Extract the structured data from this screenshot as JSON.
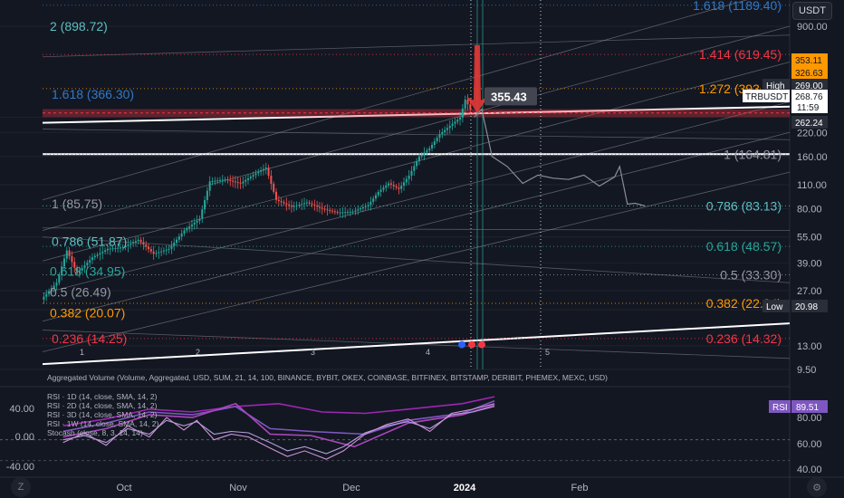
{
  "symbol": "TRBUSDT",
  "currency_button": "USDT",
  "countdown": "11:59",
  "volume_label": "Aggregated Volume (Volume, Aggregated, USD, SUM, 21, 14, 100, BINANCE, BYBIT, OKEX, COINBASE, BITFINEX, BITSTAMP, DERIBIT, PHEMEX, MEXC, USD)",
  "colors": {
    "bg": "#131722",
    "grid": "#1f2330",
    "text": "#b2b5be",
    "fib_teal": "#26a69a",
    "fib_orange": "#ff9800",
    "fib_red": "#f23645",
    "fib_blue": "#3179c6",
    "fib_gray": "#9598a1",
    "fib_teal_light": "#5bc0c0",
    "candle_up": "#26a69a",
    "candle_down": "#ef5350",
    "projection": "#8a8d96",
    "rsi_badge": "#7e57c2"
  },
  "chart_data": [
    {
      "type": "candlestick",
      "title": "",
      "y_scale": "log",
      "ylim": [
        9.5,
        1200
      ],
      "x_ticks": [
        "Oct",
        "Nov",
        "Dec",
        "2024",
        "Feb"
      ],
      "y_ticks": [
        "900.00",
        "269.00",
        "220.00",
        "160.00",
        "110.00",
        "80.00",
        "55.00",
        "39.00",
        "27.00",
        "20.98",
        "13.00",
        "9.50"
      ],
      "price_tags": [
        {
          "label": "353.11",
          "value": 353.11,
          "color": "#ff9800"
        },
        {
          "label": "326.63",
          "value": 326.63,
          "color": "#ff9800"
        },
        {
          "label": "High",
          "value": 300,
          "color": "#2a2e39"
        },
        {
          "label": "269.00",
          "value": 269.0,
          "color": "#2a2e39"
        },
        {
          "label": "268.76",
          "value": 268.76,
          "color": "#ffffff"
        },
        {
          "label": "262.24",
          "value": 262.24,
          "color": "#2a2e39"
        },
        {
          "label": "Low",
          "value": 20.98,
          "color": "#2a2e39"
        },
        {
          "label": "20.98",
          "value": 20.98,
          "color": "#2a2e39"
        }
      ],
      "annotation": {
        "label": "355.43",
        "value": 355.43
      },
      "wave_labels": [
        "1",
        "2",
        "3",
        "4",
        "5"
      ],
      "fib_left": [
        {
          "label": "2 (898.72)",
          "value": 898.72
        },
        {
          "label": "1.618 (366.30)",
          "value": 366.3
        },
        {
          "label": "1 (85.75)",
          "value": 85.75
        },
        {
          "label": "0.786 (51.87)",
          "value": 51.87
        },
        {
          "label": "0.618 (34.95)",
          "value": 34.95
        },
        {
          "label": "0.5 (26.49)",
          "value": 26.49
        },
        {
          "label": "0.382 (20.07)",
          "value": 20.07
        },
        {
          "label": "0.236 (14.25)",
          "value": 14.25
        }
      ],
      "fib_right": [
        {
          "label": "1.618 (1189.40)",
          "value": 1189.4
        },
        {
          "label": "1.414 (619.45)",
          "value": 619.45
        },
        {
          "label": "1.272 (393.25)",
          "value": 393.25
        },
        {
          "label": "1 (164.81)",
          "value": 164.81
        },
        {
          "label": "0.786 (83.13)",
          "value": 83.13
        },
        {
          "label": "0.618 (48.57)",
          "value": 48.57
        },
        {
          "label": "0.5 (33.30)",
          "value": 33.3
        },
        {
          "label": "0.382 (22.84)",
          "value": 22.84
        },
        {
          "label": "0.236 (14.32)",
          "value": 14.32
        }
      ],
      "price_path": [
        {
          "d": 0,
          "p": 24
        },
        {
          "d": 6,
          "p": 30
        },
        {
          "d": 10,
          "p": 46
        },
        {
          "d": 14,
          "p": 34
        },
        {
          "d": 20,
          "p": 42
        },
        {
          "d": 26,
          "p": 47
        },
        {
          "d": 32,
          "p": 48
        },
        {
          "d": 38,
          "p": 53
        },
        {
          "d": 44,
          "p": 44
        },
        {
          "d": 50,
          "p": 47
        },
        {
          "d": 56,
          "p": 60
        },
        {
          "d": 62,
          "p": 70
        },
        {
          "d": 66,
          "p": 115
        },
        {
          "d": 72,
          "p": 118
        },
        {
          "d": 78,
          "p": 112
        },
        {
          "d": 84,
          "p": 128
        },
        {
          "d": 88,
          "p": 138
        },
        {
          "d": 92,
          "p": 90
        },
        {
          "d": 98,
          "p": 82
        },
        {
          "d": 104,
          "p": 87
        },
        {
          "d": 110,
          "p": 80
        },
        {
          "d": 116,
          "p": 76
        },
        {
          "d": 122,
          "p": 77
        },
        {
          "d": 128,
          "p": 84
        },
        {
          "d": 132,
          "p": 100
        },
        {
          "d": 136,
          "p": 112
        },
        {
          "d": 140,
          "p": 104
        },
        {
          "d": 144,
          "p": 124
        },
        {
          "d": 148,
          "p": 160
        },
        {
          "d": 152,
          "p": 178
        },
        {
          "d": 156,
          "p": 215
        },
        {
          "d": 160,
          "p": 240
        },
        {
          "d": 164,
          "p": 268
        },
        {
          "d": 166,
          "p": 340
        },
        {
          "d": 168,
          "p": 300
        },
        {
          "d": 169,
          "p": 269
        }
      ],
      "projection_path": [
        {
          "d": 169,
          "p": 269
        },
        {
          "d": 172,
          "p": 300
        },
        {
          "d": 176,
          "p": 160
        },
        {
          "d": 182,
          "p": 140
        },
        {
          "d": 188,
          "p": 112
        },
        {
          "d": 194,
          "p": 125
        },
        {
          "d": 200,
          "p": 120
        },
        {
          "d": 206,
          "p": 118
        },
        {
          "d": 212,
          "p": 125
        },
        {
          "d": 218,
          "p": 108
        },
        {
          "d": 224,
          "p": 122
        },
        {
          "d": 226,
          "p": 140
        },
        {
          "d": 229,
          "p": 85
        },
        {
          "d": 232,
          "p": 86
        },
        {
          "d": 236,
          "p": 83
        }
      ]
    },
    {
      "type": "line",
      "title": "",
      "legend": [
        "RSI · 1D (14, close, SMA, 14, 2)",
        "RSI · 2D (14, close, SMA, 14, 2)",
        "RSI · 3D (14, close, SMA, 14, 2)",
        "RSI · 1W (14, close, SMA, 14, 2)",
        "Stocash (close, 8, 3, 14, 14)"
      ],
      "y_ticks_left": [
        "40.00",
        "0.00",
        "-40.00"
      ],
      "y_ticks_right": [
        "80.00",
        "60.00",
        "40.00"
      ],
      "ylim": [
        35,
        95
      ],
      "badge": {
        "name": "RSI",
        "value": "89.51"
      },
      "series": [
        {
          "values": [
            {
              "d": 0,
              "v": 70
            },
            {
              "d": 20,
              "v": 75
            },
            {
              "d": 40,
              "v": 82
            },
            {
              "d": 60,
              "v": 80
            },
            {
              "d": 80,
              "v": 84
            },
            {
              "d": 100,
              "v": 86
            },
            {
              "d": 120,
              "v": 80
            },
            {
              "d": 140,
              "v": 79
            },
            {
              "d": 160,
              "v": 82
            },
            {
              "d": 185,
              "v": 86
            },
            {
              "d": 200,
              "v": 91
            }
          ]
        },
        {
          "values": [
            {
              "d": 0,
              "v": 66
            },
            {
              "d": 20,
              "v": 72
            },
            {
              "d": 40,
              "v": 80
            },
            {
              "d": 60,
              "v": 78
            },
            {
              "d": 80,
              "v": 84
            },
            {
              "d": 96,
              "v": 68
            },
            {
              "d": 115,
              "v": 66
            },
            {
              "d": 140,
              "v": 64
            },
            {
              "d": 160,
              "v": 74
            },
            {
              "d": 185,
              "v": 79
            },
            {
              "d": 200,
              "v": 88
            }
          ]
        },
        {
          "values": [
            {
              "d": 0,
              "v": 62
            },
            {
              "d": 20,
              "v": 68
            },
            {
              "d": 40,
              "v": 78
            },
            {
              "d": 60,
              "v": 76
            },
            {
              "d": 80,
              "v": 86
            },
            {
              "d": 96,
              "v": 64
            },
            {
              "d": 115,
              "v": 63
            },
            {
              "d": 135,
              "v": 55
            },
            {
              "d": 160,
              "v": 72
            },
            {
              "d": 185,
              "v": 78
            },
            {
              "d": 200,
              "v": 85
            }
          ]
        },
        {
          "values": [
            {
              "d": 0,
              "v": 60
            },
            {
              "d": 10,
              "v": 63
            },
            {
              "d": 20,
              "v": 58
            },
            {
              "d": 30,
              "v": 68
            },
            {
              "d": 40,
              "v": 64
            },
            {
              "d": 48,
              "v": 74
            },
            {
              "d": 56,
              "v": 70
            },
            {
              "d": 62,
              "v": 73
            },
            {
              "d": 70,
              "v": 64
            },
            {
              "d": 78,
              "v": 66
            },
            {
              "d": 86,
              "v": 65
            },
            {
              "d": 96,
              "v": 58
            },
            {
              "d": 104,
              "v": 52
            },
            {
              "d": 112,
              "v": 55
            },
            {
              "d": 122,
              "v": 50
            },
            {
              "d": 130,
              "v": 55
            },
            {
              "d": 140,
              "v": 65
            },
            {
              "d": 150,
              "v": 70
            },
            {
              "d": 160,
              "v": 73
            },
            {
              "d": 170,
              "v": 68
            },
            {
              "d": 180,
              "v": 78
            },
            {
              "d": 190,
              "v": 80
            },
            {
              "d": 200,
              "v": 84
            }
          ]
        },
        {
          "values": [
            {
              "d": 0,
              "v": 58
            },
            {
              "d": 10,
              "v": 65
            },
            {
              "d": 20,
              "v": 56
            },
            {
              "d": 30,
              "v": 70
            },
            {
              "d": 40,
              "v": 62
            },
            {
              "d": 48,
              "v": 76
            },
            {
              "d": 56,
              "v": 67
            },
            {
              "d": 62,
              "v": 74
            },
            {
              "d": 70,
              "v": 60
            },
            {
              "d": 78,
              "v": 64
            },
            {
              "d": 86,
              "v": 62
            },
            {
              "d": 96,
              "v": 54
            },
            {
              "d": 104,
              "v": 48
            },
            {
              "d": 112,
              "v": 52
            },
            {
              "d": 122,
              "v": 46
            },
            {
              "d": 130,
              "v": 52
            },
            {
              "d": 140,
              "v": 64
            },
            {
              "d": 150,
              "v": 71
            },
            {
              "d": 160,
              "v": 75
            },
            {
              "d": 170,
              "v": 66
            },
            {
              "d": 180,
              "v": 79
            },
            {
              "d": 190,
              "v": 82
            },
            {
              "d": 200,
              "v": 86
            }
          ]
        }
      ]
    }
  ]
}
